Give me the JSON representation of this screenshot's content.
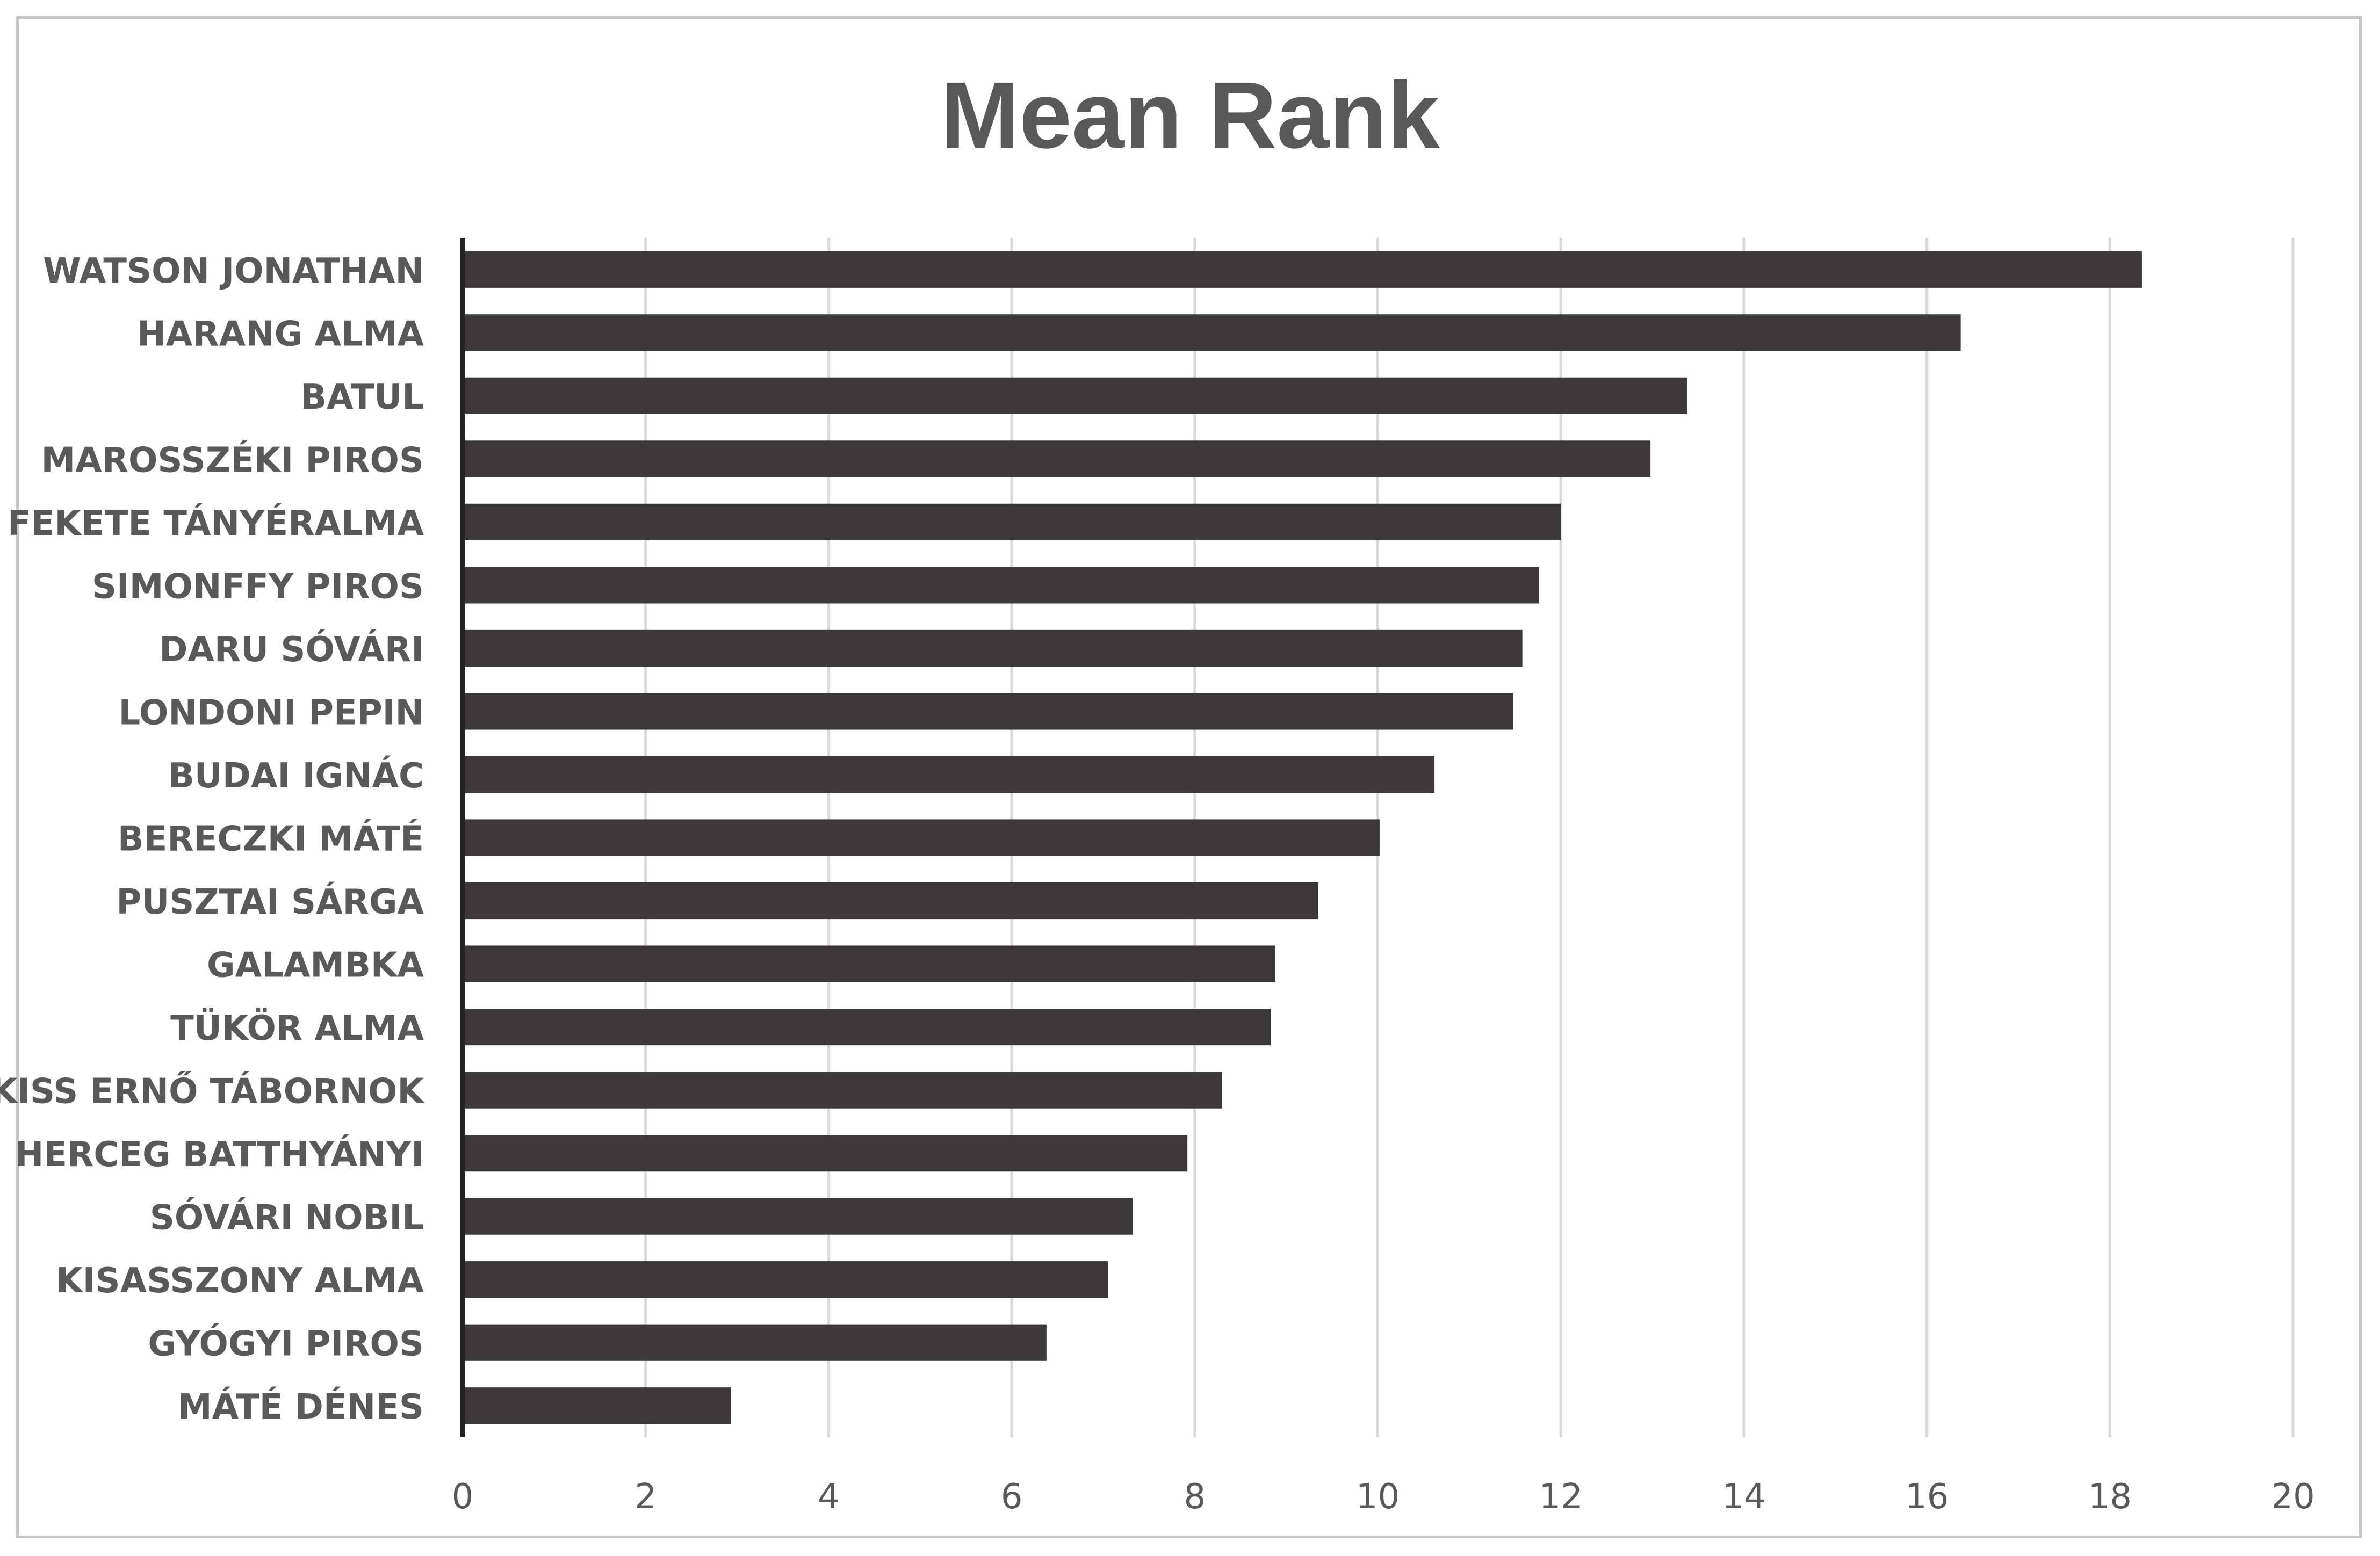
{
  "chart_data": {
    "type": "bar",
    "orientation": "horizontal",
    "title": "Mean Rank",
    "xlabel": "",
    "ylabel": "",
    "categories": [
      "WATSON JONATHAN",
      "HARANG ALMA",
      "BATUL",
      "MAROSSZÉKI PIROS",
      "FEKETE TÁNYÉRALMA",
      "SIMONFFY PIROS",
      "DARU SÓVÁRI",
      "LONDONI PEPIN",
      "BUDAI IGNÁC",
      "BERECZKI MÁTÉ",
      "PUSZTAI SÁRGA",
      "GALAMBKA",
      "TÜKÖR ALMA",
      "KISS ERNŐ TÁBORNOK",
      "HERCEG BATTHYÁNYI",
      "SÓVÁRI NOBIL",
      "KISASSZONY ALMA",
      "GYÓGYI PIROS",
      "MÁTÉ DÉNES"
    ],
    "values": [
      18.35,
      16.37,
      13.38,
      12.98,
      12.0,
      11.76,
      11.58,
      11.48,
      10.62,
      10.02,
      9.35,
      8.88,
      8.83,
      8.3,
      7.92,
      7.32,
      7.05,
      6.38,
      2.93
    ],
    "xlim": [
      0,
      20
    ],
    "xticks": [
      "0",
      "2",
      "4",
      "6",
      "8",
      "10",
      "12",
      "14",
      "16",
      "18",
      "20"
    ],
    "grid": true,
    "bar_color": "#3a3838",
    "gridline_color": "#d9d9d9",
    "text_color": "#595959"
  }
}
